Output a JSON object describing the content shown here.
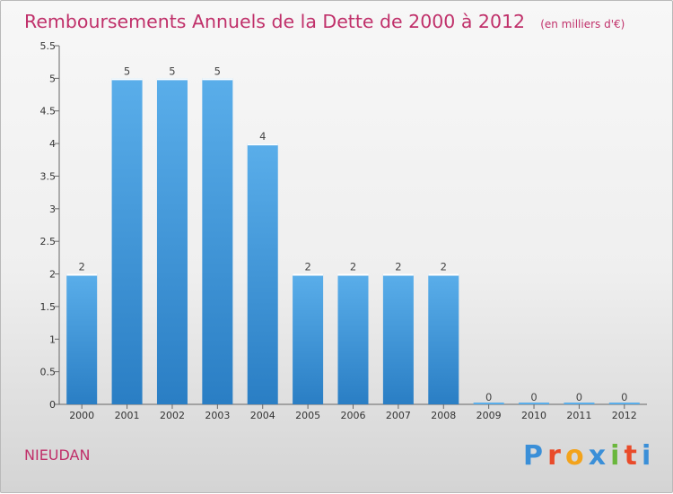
{
  "header": {
    "title": "Remboursements Annuels de la Dette de 2000 à 2012",
    "unit": "(en milliers d'€)"
  },
  "commune": "NIEUDAN",
  "logo": {
    "name": "Proxiti",
    "letters": [
      "P",
      "r",
      "o",
      "x",
      "i",
      "t",
      "i"
    ],
    "colors": [
      "#3a8fd8",
      "#e94b2a",
      "#f3a31b",
      "#3a8fd8",
      "#6ab73c",
      "#e94b2a",
      "#3a8fd8"
    ]
  },
  "colors": {
    "bar_light": "#5aaeea",
    "bar_dark": "#2a7ec4",
    "axis": "#666666",
    "title": "#c0306a"
  },
  "chart_data": {
    "type": "bar",
    "title": "Remboursements Annuels de la Dette de 2000 à 2012",
    "subtitle": "(en milliers d'€)",
    "categories": [
      "2000",
      "2001",
      "2002",
      "2003",
      "2004",
      "2005",
      "2006",
      "2007",
      "2008",
      "2009",
      "2010",
      "2011",
      "2012"
    ],
    "values": [
      2,
      5,
      5,
      5,
      4,
      2,
      2,
      2,
      2,
      0,
      0,
      0,
      0
    ],
    "data_labels": [
      "2",
      "5",
      "5",
      "5",
      "4",
      "2",
      "2",
      "2",
      "2",
      "0",
      "0",
      "0",
      "0"
    ],
    "ylim": [
      0,
      5.5
    ],
    "yticks": [
      0,
      0.5,
      1,
      1.5,
      2,
      2.5,
      3,
      3.5,
      4,
      4.5,
      5,
      5.5
    ],
    "ytick_labels": [
      "0",
      "0.5",
      "1",
      "1.5",
      "2",
      "2.5",
      "3",
      "3.5",
      "4",
      "4.5",
      "5",
      "5.5"
    ],
    "xlabel": "",
    "ylabel": "",
    "grid": false,
    "legend": "none"
  }
}
